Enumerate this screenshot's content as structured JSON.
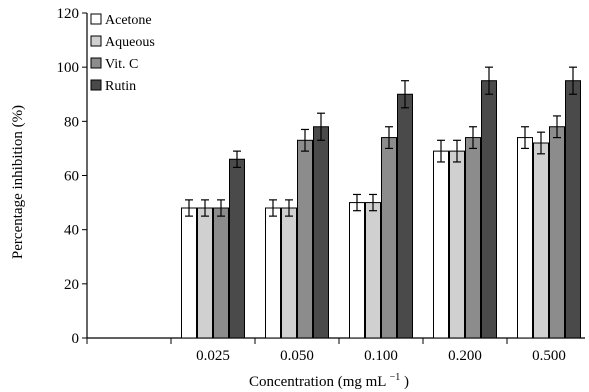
{
  "chart_data": {
    "type": "bar",
    "xlabel_main": "Concentration (mg mL",
    "xlabel_sup": "−1",
    "xlabel_end": ")",
    "ylabel": "Percentage inhibition (%)",
    "ylim": [
      0,
      120
    ],
    "yticks": [
      "0",
      "20",
      "40",
      "60",
      "80",
      "100",
      "120"
    ],
    "categories": [
      "0.025",
      "0.050",
      "0.100",
      "0.200",
      "0.500"
    ],
    "grid": false,
    "legend_position": "top-left",
    "series": [
      {
        "name": "Acetone",
        "color": "#ffffff",
        "values": [
          48,
          48,
          50,
          69,
          74
        ],
        "errors": [
          3,
          3,
          3,
          4,
          4
        ]
      },
      {
        "name": "Aqueous",
        "color": "#d0d0d0",
        "values": [
          48,
          48,
          50,
          69,
          72
        ],
        "errors": [
          3,
          3,
          3,
          4,
          4
        ]
      },
      {
        "name": "Vit. C",
        "color": "#8c8c8c",
        "values": [
          48,
          73,
          74,
          74,
          78
        ],
        "errors": [
          3,
          4,
          4,
          4,
          4
        ]
      },
      {
        "name": "Rutin",
        "color": "#4a4a4a",
        "values": [
          66,
          78,
          90,
          95,
          95
        ],
        "errors": [
          3,
          5,
          5,
          5,
          5
        ]
      }
    ]
  }
}
